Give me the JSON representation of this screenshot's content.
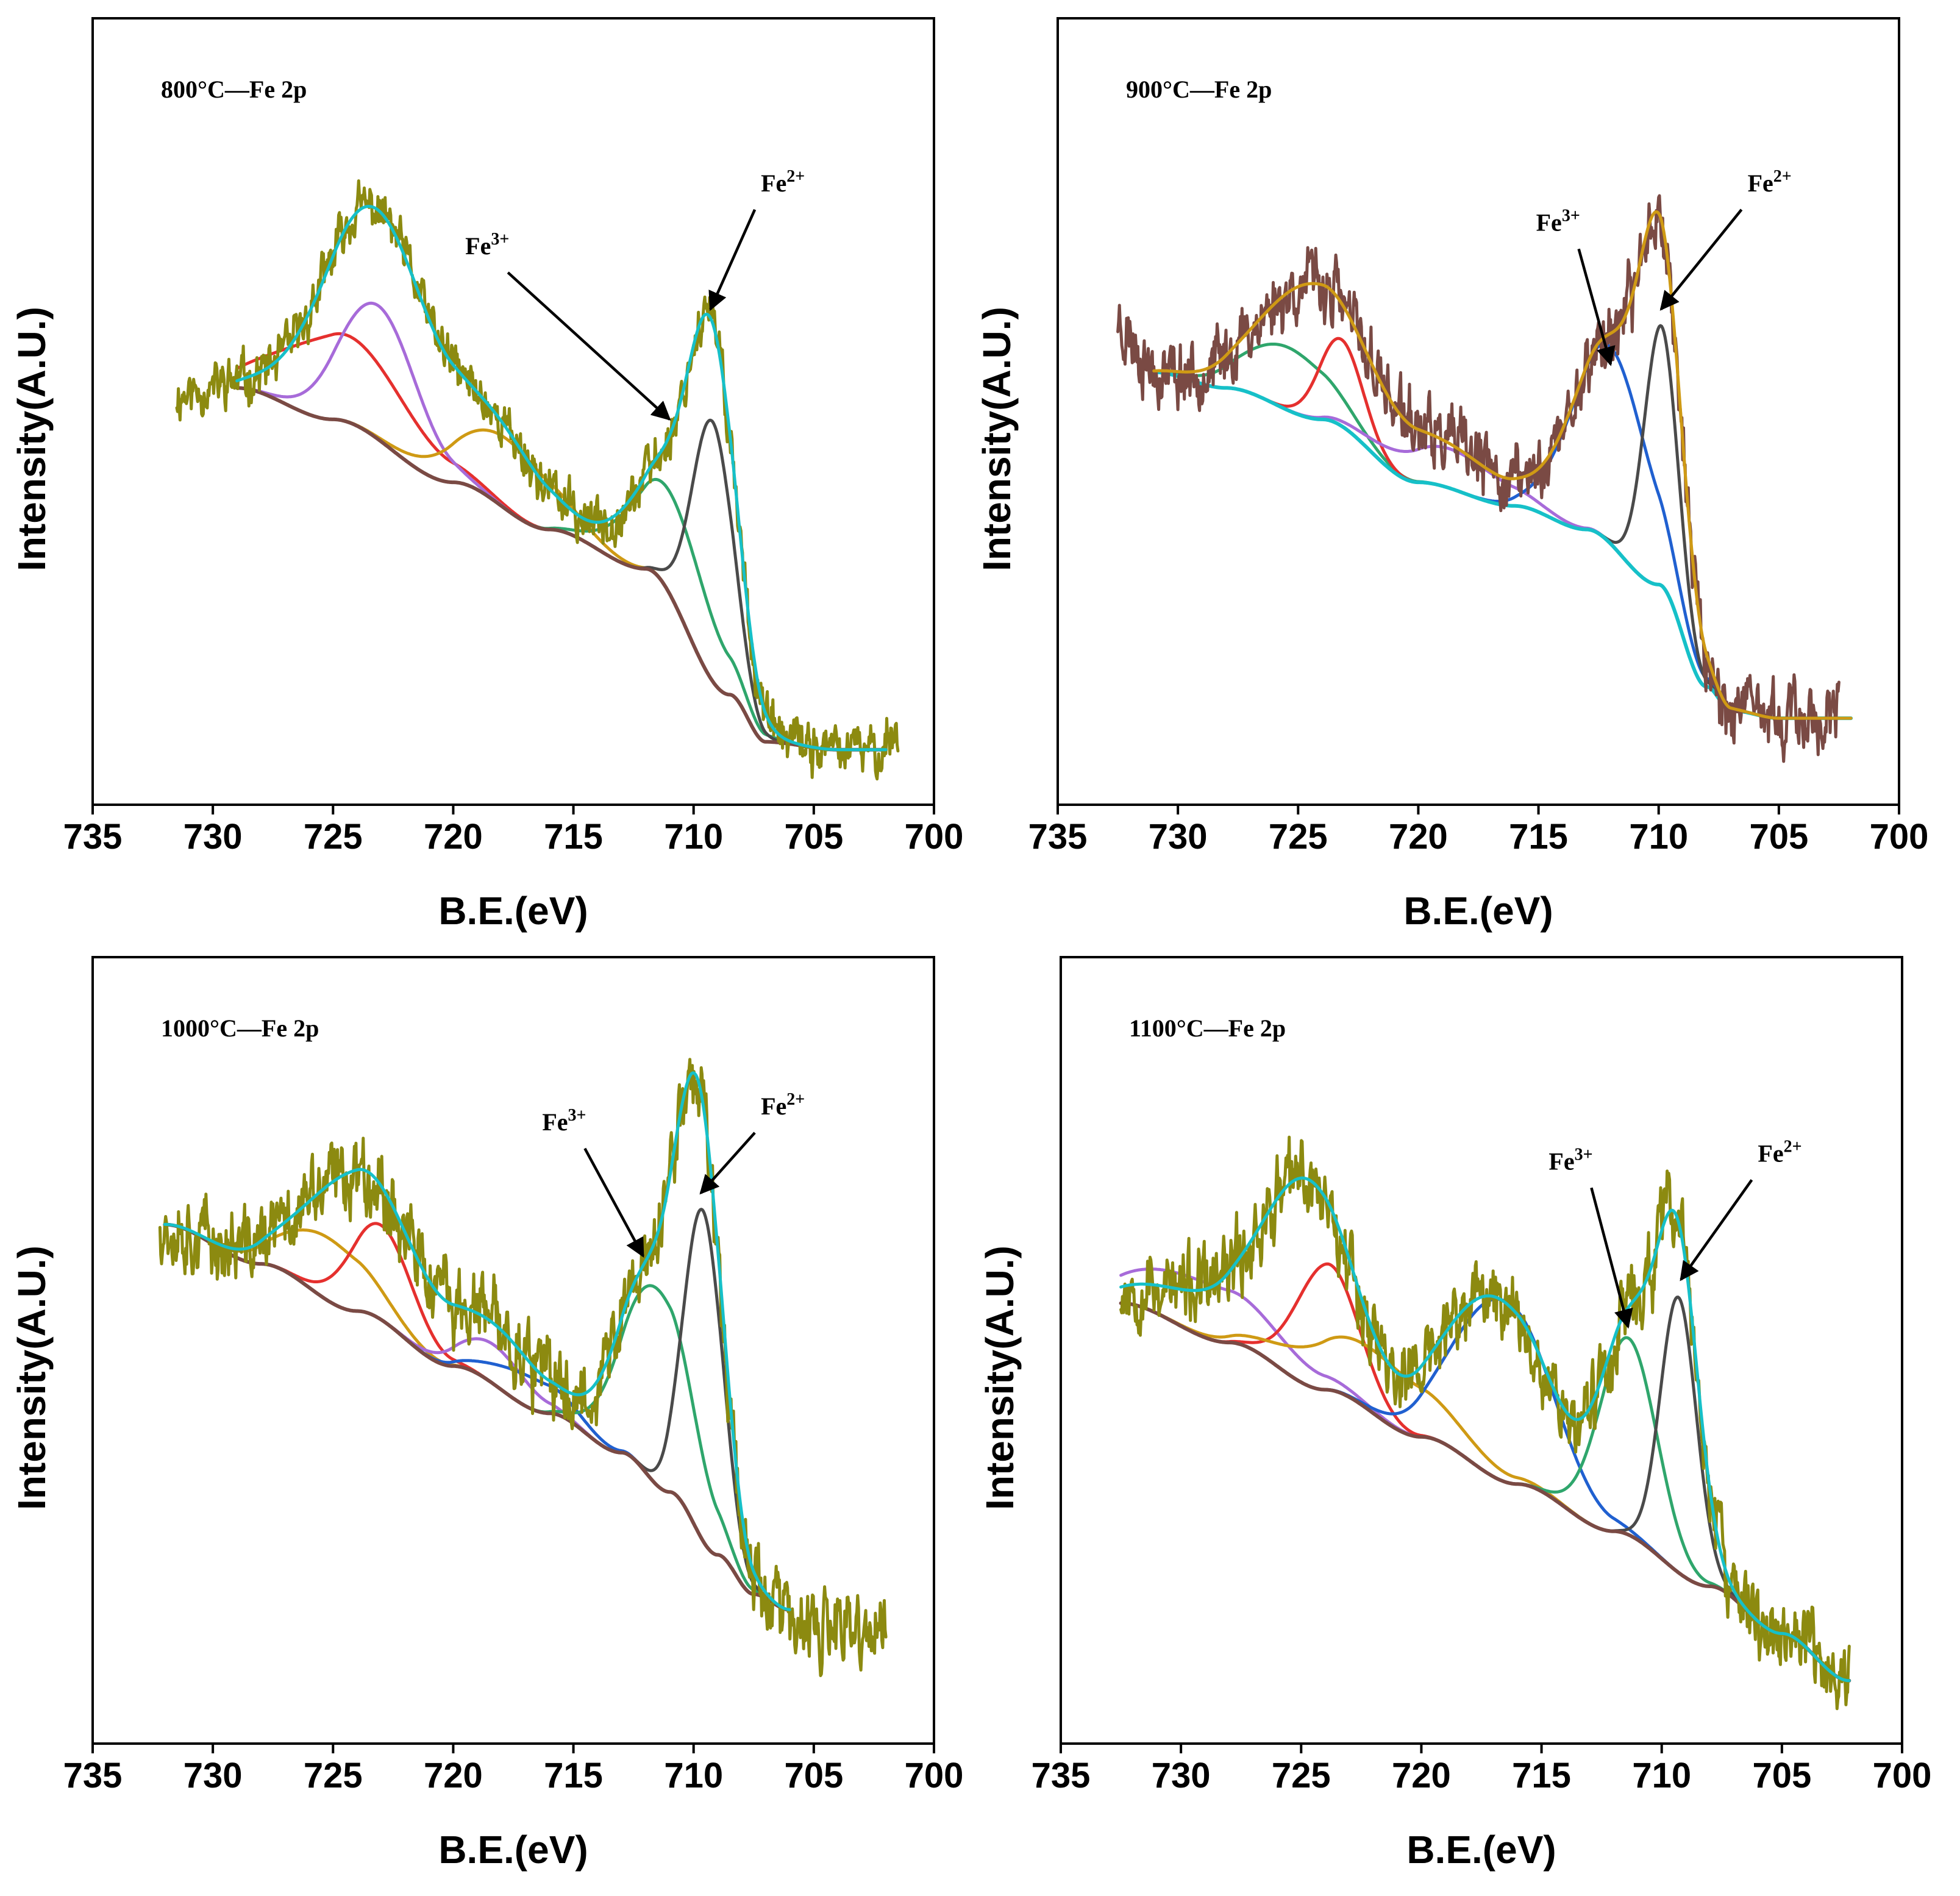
{
  "figure": {
    "panels": [
      {
        "title": "800°C—Fe 2p",
        "xlabel": "B.E.(eV)",
        "ylabel": "Intensity(A.U.)",
        "xlim": [
          735,
          700
        ],
        "ylim": [
          0,
          1
        ],
        "xticks": [
          "735",
          "730",
          "725",
          "720",
          "715",
          "710",
          "705",
          "700"
        ],
        "annotations": [
          {
            "label": "Fe",
            "sup": "3+",
            "label_at": [
              719.5,
              0.7
            ],
            "point_to": [
              711.0,
              0.49
            ]
          },
          {
            "label": "Fe",
            "sup": "2+",
            "label_at": [
              707.2,
              0.78
            ],
            "point_to": [
              709.3,
              0.63
            ]
          }
        ]
      },
      {
        "title": "900°C—Fe 2p",
        "xlabel": "B.E.(eV)",
        "ylabel": "Intensity(A.U.)",
        "xlim": [
          735,
          700
        ],
        "ylim": [
          0,
          1
        ],
        "xticks": [
          "735",
          "730",
          "725",
          "720",
          "715",
          "710",
          "705",
          "700"
        ],
        "annotations": [
          {
            "label": "Fe",
            "sup": "3+",
            "label_at": [
              715.1,
              0.73
            ],
            "point_to": [
              712.0,
              0.56
            ]
          },
          {
            "label": "Fe",
            "sup": "2+",
            "label_at": [
              706.3,
              0.78
            ],
            "point_to": [
              709.9,
              0.63
            ]
          }
        ]
      },
      {
        "title": "1000°C—Fe 2p",
        "xlabel": "B.E.(eV)",
        "ylabel": "Intensity(A.U.)",
        "xlim": [
          735,
          700
        ],
        "ylim": [
          0,
          1
        ],
        "xticks": [
          "735",
          "730",
          "725",
          "720",
          "715",
          "710",
          "705",
          "700"
        ],
        "annotations": [
          {
            "label": "Fe",
            "sup": "3+",
            "label_at": [
              716.3,
              0.78
            ],
            "point_to": [
              712.1,
              0.62
            ]
          },
          {
            "label": "Fe",
            "sup": "2+",
            "label_at": [
              707.2,
              0.8
            ],
            "point_to": [
              709.7,
              0.7
            ]
          }
        ]
      },
      {
        "title": "1100°C—Fe 2p",
        "xlabel": "B.E.(eV)",
        "ylabel": "Intensity(A.U.)",
        "xlim": [
          735,
          700
        ],
        "ylim": [
          0,
          1
        ],
        "xticks": [
          "735",
          "730",
          "725",
          "720",
          "715",
          "710",
          "705",
          "700"
        ],
        "annotations": [
          {
            "label": "Fe",
            "sup": "3+",
            "label_at": [
              714.7,
              0.73
            ],
            "point_to": [
              711.4,
              0.53
            ]
          },
          {
            "label": "Fe",
            "sup": "2+",
            "label_at": [
              706.0,
              0.74
            ],
            "point_to": [
              709.2,
              0.59
            ]
          }
        ]
      }
    ]
  },
  "chart_data": [
    {
      "type": "line",
      "title": "800°C—Fe 2p",
      "xlabel": "B.E.(eV)",
      "ylabel": "Intensity(A.U.)",
      "xlim": [
        735,
        700
      ],
      "ylim": [
        0,
        1
      ],
      "colors": {
        "background": "#7a4a44",
        "raw": "#8c8a10",
        "envelope": "#16c0c8",
        "red": "#e5302e",
        "purple": "#a76bd9",
        "orange": "#cf9a14",
        "blue": "#2060d0",
        "green": "#2fa66c",
        "dark": "#4a4a4a"
      },
      "background": {
        "x": [
          729,
          725,
          720,
          716,
          712,
          708.5,
          707,
          704,
          702
        ],
        "y": [
          0.53,
          0.49,
          0.41,
          0.35,
          0.3,
          0.14,
          0.08,
          0.07,
          0.07
        ]
      },
      "raw": {
        "x_start": 731.5,
        "x_end": 701.5,
        "seed": 11,
        "noise": 0.022,
        "pre": [
          731.5,
          0.52,
          729,
          0.53
        ],
        "post_level": 0.09
      },
      "components": [
        {
          "name": "red",
          "center": 724.5,
          "height": 0.11,
          "width": 2.6,
          "taper": 718.0
        },
        {
          "name": "purple",
          "center": 723.1,
          "height": 0.17,
          "width": 1.6
        },
        {
          "name": "orange",
          "center": 717.8,
          "height": 0.09,
          "width": 2.0
        },
        {
          "name": "green",
          "center": 710.9,
          "height": 0.13,
          "width": 1.7
        },
        {
          "name": "dark",
          "center": 709.2,
          "height": 0.33,
          "width": 0.85
        }
      ],
      "envelope_peaks": [
        {
          "center": 723.2,
          "height": 0.29,
          "width": 2.2
        },
        {
          "center": 718.0,
          "height": 0.09,
          "width": 1.8
        },
        {
          "center": 710.9,
          "height": 0.14,
          "width": 1.7
        },
        {
          "center": 709.2,
          "height": 0.37,
          "width": 0.95
        }
      ]
    },
    {
      "type": "line",
      "title": "900°C—Fe 2p",
      "xlabel": "B.E.(eV)",
      "ylabel": "Intensity(A.U.)",
      "xlim": [
        735,
        700
      ],
      "ylim": [
        0,
        1
      ],
      "colors": {
        "background": "#16c0c8",
        "raw": "#7a4a44",
        "envelope": "#cf9a14",
        "red": "#e5302e",
        "purple": "#a76bd9",
        "orange": "#cf9a14",
        "blue": "#2060d0",
        "green": "#2fa66c",
        "dark": "#4a4a4a"
      },
      "background": {
        "x": [
          731,
          728,
          724,
          720,
          716,
          713,
          710,
          708,
          707,
          705,
          702
        ],
        "y": [
          0.55,
          0.53,
          0.49,
          0.41,
          0.38,
          0.35,
          0.28,
          0.15,
          0.12,
          0.11,
          0.11
        ]
      },
      "raw": {
        "x_start": 732.5,
        "x_end": 702.5,
        "seed": 23,
        "noise": 0.03,
        "pre": [
          732.5,
          0.62,
          731,
          0.55
        ],
        "post_level": 0.11
      },
      "components": [
        {
          "name": "green",
          "center": 725.4,
          "height": 0.08,
          "width": 1.8
        },
        {
          "name": "red",
          "center": 723.2,
          "height": 0.11,
          "width": 0.9
        },
        {
          "name": "purple",
          "center": 718.7,
          "height": 0.05,
          "width": 2.2
        },
        {
          "name": "blue",
          "center": 712.0,
          "height": 0.25,
          "width": 1.6
        },
        {
          "name": "dark",
          "center": 709.9,
          "height": 0.33,
          "width": 0.7
        }
      ],
      "envelope_peaks": [
        {
          "center": 724.3,
          "height": 0.17,
          "width": 2.2
        },
        {
          "center": 718.7,
          "height": 0.05,
          "width": 2.2
        },
        {
          "center": 712.0,
          "height": 0.25,
          "width": 1.6
        },
        {
          "center": 709.9,
          "height": 0.36,
          "width": 0.85
        }
      ]
    },
    {
      "type": "line",
      "title": "1000°C—Fe 2p",
      "xlabel": "B.E.(eV)",
      "ylabel": "Intensity(A.U.)",
      "xlim": [
        735,
        700
      ],
      "ylim": [
        0,
        1
      ],
      "colors": {
        "background": "#7a4a44",
        "raw": "#8c8a10",
        "envelope": "#16c0c8",
        "red": "#e5302e",
        "purple": "#a76bd9",
        "orange": "#cf9a14",
        "blue": "#2060d0",
        "green": "#2fa66c",
        "dark": "#4a4a4a"
      },
      "background": {
        "x": [
          732,
          728,
          724,
          720,
          716,
          713,
          711,
          709,
          707.5,
          706
        ],
        "y": [
          0.66,
          0.61,
          0.55,
          0.48,
          0.42,
          0.37,
          0.32,
          0.24,
          0.19,
          0.17
        ]
      },
      "raw": {
        "x_start": 732.2,
        "x_end": 702.0,
        "seed": 37,
        "noise": 0.035,
        "pre": [
          732.2,
          0.67,
          732,
          0.66
        ],
        "post_level": 0.14
      },
      "components": [
        {
          "name": "orange",
          "center": 725.2,
          "height": 0.08,
          "width": 1.8
        },
        {
          "name": "red",
          "center": 723.0,
          "height": 0.12,
          "width": 1.3
        },
        {
          "name": "purple",
          "center": 718.3,
          "height": 0.05,
          "width": 1.4
        },
        {
          "name": "blue",
          "center": 716.8,
          "height": 0.04,
          "width": 1.6
        },
        {
          "name": "green",
          "center": 711.5,
          "height": 0.25,
          "width": 1.45
        },
        {
          "name": "dark",
          "center": 709.6,
          "height": 0.42,
          "width": 0.8
        }
      ],
      "envelope_peaks": [
        {
          "center": 723.8,
          "height": 0.18,
          "width": 2.2
        },
        {
          "center": 718.0,
          "height": 0.07,
          "width": 1.8
        },
        {
          "center": 711.6,
          "height": 0.26,
          "width": 1.5
        },
        {
          "center": 709.7,
          "height": 0.45,
          "width": 0.9
        }
      ]
    },
    {
      "type": "line",
      "title": "1100°C—Fe 2p",
      "xlabel": "B.E.(eV)",
      "ylabel": "Intensity(A.U.)",
      "xlim": [
        735,
        700
      ],
      "ylim": [
        0,
        1
      ],
      "colors": {
        "background": "#7a4a44",
        "raw": "#8c8a10",
        "envelope": "#16c0c8",
        "red": "#e5302e",
        "purple": "#a76bd9",
        "orange": "#cf9a14",
        "blue": "#2060d0",
        "green": "#2fa66c",
        "dark": "#4a4a4a"
      },
      "background": {
        "x": [
          732.5,
          728,
          724,
          720,
          716,
          712,
          708,
          705,
          702.2
        ],
        "y": [
          0.56,
          0.51,
          0.45,
          0.39,
          0.33,
          0.27,
          0.2,
          0.14,
          0.08
        ]
      },
      "raw": {
        "x_start": 732.5,
        "x_end": 702.2,
        "seed": 53,
        "noise": 0.035,
        "pre": [
          732.5,
          0.6,
          732.5,
          0.6
        ],
        "post_level": null
      },
      "components": [
        {
          "name": "purple",
          "center": 729.0,
          "height": 0.07,
          "width": 3.0
        },
        {
          "name": "red",
          "center": 723.9,
          "height": 0.16,
          "width": 1.3
        },
        {
          "name": "orange",
          "center": 722.0,
          "height": 0.08,
          "width": 2.8
        },
        {
          "name": "blue",
          "center": 716.6,
          "height": 0.23,
          "width": 2.0
        },
        {
          "name": "green",
          "center": 711.4,
          "height": 0.25,
          "width": 1.2
        },
        {
          "name": "dark",
          "center": 709.3,
          "height": 0.35,
          "width": 0.75
        }
      ],
      "envelope_peaks": [
        {
          "center": 728.5,
          "height": 0.05,
          "width": 3.0
        },
        {
          "center": 724.6,
          "height": 0.24,
          "width": 1.8
        },
        {
          "center": 716.8,
          "height": 0.23,
          "width": 2.2
        },
        {
          "center": 711.3,
          "height": 0.26,
          "width": 1.2
        },
        {
          "center": 709.3,
          "height": 0.38,
          "width": 0.85
        }
      ]
    }
  ]
}
